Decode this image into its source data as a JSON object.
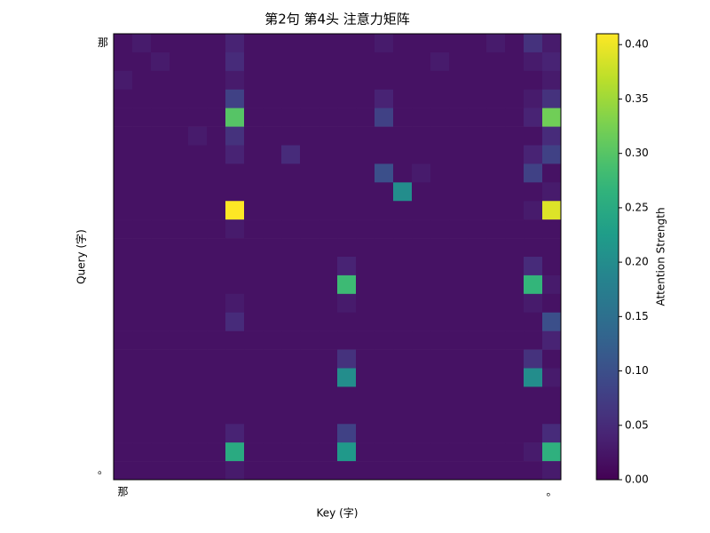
{
  "chart_data": {
    "type": "heatmap",
    "title": "第2句 第4头 注意力矩阵",
    "xlabel": "Key (字)",
    "ylabel": "Query (字)",
    "colorbar_label": "Attention Strength",
    "colormap": "viridis",
    "x_categories": [
      "那",
      null,
      null,
      null,
      null,
      null,
      null,
      null,
      null,
      null,
      null,
      null,
      null,
      null,
      null,
      null,
      null,
      null,
      null,
      null,
      null,
      null,
      null,
      "。"
    ],
    "y_categories": [
      "那",
      null,
      null,
      null,
      null,
      null,
      null,
      null,
      null,
      null,
      null,
      null,
      null,
      null,
      null,
      null,
      null,
      null,
      null,
      null,
      null,
      null,
      null,
      "。"
    ],
    "z": [
      [
        0.02,
        0.03,
        0.02,
        0.02,
        0.02,
        0.02,
        0.04,
        0.02,
        0.02,
        0.02,
        0.02,
        0.02,
        0.02,
        0.02,
        0.03,
        0.02,
        0.02,
        0.02,
        0.02,
        0.02,
        0.03,
        0.02,
        0.06,
        0.03
      ],
      [
        0.02,
        0.02,
        0.03,
        0.02,
        0.02,
        0.02,
        0.05,
        0.02,
        0.02,
        0.02,
        0.02,
        0.02,
        0.02,
        0.02,
        0.02,
        0.02,
        0.02,
        0.03,
        0.02,
        0.02,
        0.02,
        0.02,
        0.03,
        0.04
      ],
      [
        0.03,
        0.02,
        0.02,
        0.02,
        0.02,
        0.02,
        0.03,
        0.02,
        0.02,
        0.02,
        0.02,
        0.02,
        0.02,
        0.02,
        0.02,
        0.02,
        0.02,
        0.02,
        0.02,
        0.02,
        0.02,
        0.02,
        0.02,
        0.03
      ],
      [
        0.02,
        0.02,
        0.02,
        0.02,
        0.02,
        0.02,
        0.08,
        0.02,
        0.02,
        0.02,
        0.02,
        0.02,
        0.02,
        0.02,
        0.04,
        0.02,
        0.02,
        0.02,
        0.02,
        0.02,
        0.02,
        0.02,
        0.03,
        0.06
      ],
      [
        0.02,
        0.02,
        0.02,
        0.02,
        0.02,
        0.02,
        0.3,
        0.02,
        0.02,
        0.02,
        0.02,
        0.02,
        0.02,
        0.02,
        0.08,
        0.02,
        0.02,
        0.02,
        0.02,
        0.02,
        0.02,
        0.02,
        0.04,
        0.32
      ],
      [
        0.02,
        0.02,
        0.02,
        0.02,
        0.03,
        0.02,
        0.06,
        0.02,
        0.02,
        0.02,
        0.02,
        0.02,
        0.02,
        0.02,
        0.02,
        0.02,
        0.02,
        0.02,
        0.02,
        0.02,
        0.02,
        0.02,
        0.02,
        0.05
      ],
      [
        0.02,
        0.02,
        0.02,
        0.02,
        0.02,
        0.02,
        0.04,
        0.02,
        0.02,
        0.05,
        0.02,
        0.02,
        0.02,
        0.02,
        0.02,
        0.02,
        0.02,
        0.02,
        0.02,
        0.02,
        0.02,
        0.02,
        0.04,
        0.08
      ],
      [
        0.02,
        0.02,
        0.02,
        0.02,
        0.02,
        0.02,
        0.02,
        0.02,
        0.02,
        0.02,
        0.02,
        0.02,
        0.02,
        0.02,
        0.1,
        0.02,
        0.03,
        0.02,
        0.02,
        0.02,
        0.02,
        0.02,
        0.08,
        0.02
      ],
      [
        0.02,
        0.02,
        0.02,
        0.02,
        0.02,
        0.02,
        0.02,
        0.02,
        0.02,
        0.02,
        0.02,
        0.02,
        0.02,
        0.02,
        0.02,
        0.2,
        0.02,
        0.02,
        0.02,
        0.02,
        0.02,
        0.02,
        0.02,
        0.03
      ],
      [
        0.02,
        0.02,
        0.02,
        0.02,
        0.02,
        0.02,
        0.41,
        0.02,
        0.02,
        0.02,
        0.02,
        0.02,
        0.02,
        0.02,
        0.02,
        0.02,
        0.02,
        0.02,
        0.02,
        0.02,
        0.02,
        0.02,
        0.03,
        0.39
      ],
      [
        0.02,
        0.02,
        0.02,
        0.02,
        0.02,
        0.02,
        0.03,
        0.02,
        0.02,
        0.02,
        0.02,
        0.02,
        0.02,
        0.02,
        0.02,
        0.02,
        0.02,
        0.02,
        0.02,
        0.02,
        0.02,
        0.02,
        0.02,
        0.02
      ],
      [
        0.02,
        0.02,
        0.02,
        0.02,
        0.02,
        0.02,
        0.02,
        0.02,
        0.02,
        0.02,
        0.02,
        0.02,
        0.02,
        0.02,
        0.02,
        0.02,
        0.02,
        0.02,
        0.02,
        0.02,
        0.02,
        0.02,
        0.02,
        0.02
      ],
      [
        0.02,
        0.02,
        0.02,
        0.02,
        0.02,
        0.02,
        0.02,
        0.02,
        0.02,
        0.02,
        0.02,
        0.02,
        0.04,
        0.02,
        0.02,
        0.02,
        0.02,
        0.02,
        0.02,
        0.02,
        0.02,
        0.02,
        0.05,
        0.02
      ],
      [
        0.02,
        0.02,
        0.02,
        0.02,
        0.02,
        0.02,
        0.02,
        0.02,
        0.02,
        0.02,
        0.02,
        0.02,
        0.28,
        0.02,
        0.02,
        0.02,
        0.02,
        0.02,
        0.02,
        0.02,
        0.02,
        0.02,
        0.27,
        0.03
      ],
      [
        0.02,
        0.02,
        0.02,
        0.02,
        0.02,
        0.02,
        0.03,
        0.02,
        0.02,
        0.02,
        0.02,
        0.02,
        0.03,
        0.02,
        0.02,
        0.02,
        0.02,
        0.02,
        0.02,
        0.02,
        0.02,
        0.02,
        0.03,
        0.02
      ],
      [
        0.02,
        0.02,
        0.02,
        0.02,
        0.02,
        0.02,
        0.05,
        0.02,
        0.02,
        0.02,
        0.02,
        0.02,
        0.02,
        0.02,
        0.02,
        0.02,
        0.02,
        0.02,
        0.02,
        0.02,
        0.02,
        0.02,
        0.02,
        0.1
      ],
      [
        0.02,
        0.02,
        0.02,
        0.02,
        0.02,
        0.02,
        0.02,
        0.02,
        0.02,
        0.02,
        0.02,
        0.02,
        0.02,
        0.02,
        0.02,
        0.02,
        0.02,
        0.02,
        0.02,
        0.02,
        0.02,
        0.02,
        0.02,
        0.04
      ],
      [
        0.02,
        0.02,
        0.02,
        0.02,
        0.02,
        0.02,
        0.02,
        0.02,
        0.02,
        0.02,
        0.02,
        0.02,
        0.06,
        0.02,
        0.02,
        0.02,
        0.02,
        0.02,
        0.02,
        0.02,
        0.02,
        0.02,
        0.06,
        0.02
      ],
      [
        0.02,
        0.02,
        0.02,
        0.02,
        0.02,
        0.02,
        0.02,
        0.02,
        0.02,
        0.02,
        0.02,
        0.02,
        0.2,
        0.02,
        0.02,
        0.02,
        0.02,
        0.02,
        0.02,
        0.02,
        0.02,
        0.02,
        0.2,
        0.03
      ],
      [
        0.02,
        0.02,
        0.02,
        0.02,
        0.02,
        0.02,
        0.02,
        0.02,
        0.02,
        0.02,
        0.02,
        0.02,
        0.02,
        0.02,
        0.02,
        0.02,
        0.02,
        0.02,
        0.02,
        0.02,
        0.02,
        0.02,
        0.02,
        0.02
      ],
      [
        0.02,
        0.02,
        0.02,
        0.02,
        0.02,
        0.02,
        0.02,
        0.02,
        0.02,
        0.02,
        0.02,
        0.02,
        0.02,
        0.02,
        0.02,
        0.02,
        0.02,
        0.02,
        0.02,
        0.02,
        0.02,
        0.02,
        0.02,
        0.02
      ],
      [
        0.02,
        0.02,
        0.02,
        0.02,
        0.02,
        0.02,
        0.04,
        0.02,
        0.02,
        0.02,
        0.02,
        0.02,
        0.08,
        0.02,
        0.02,
        0.02,
        0.02,
        0.02,
        0.02,
        0.02,
        0.02,
        0.02,
        0.02,
        0.05
      ],
      [
        0.02,
        0.02,
        0.02,
        0.02,
        0.02,
        0.02,
        0.25,
        0.02,
        0.02,
        0.02,
        0.02,
        0.02,
        0.22,
        0.02,
        0.02,
        0.02,
        0.02,
        0.02,
        0.02,
        0.02,
        0.02,
        0.02,
        0.03,
        0.26
      ],
      [
        0.02,
        0.02,
        0.02,
        0.02,
        0.02,
        0.02,
        0.03,
        0.02,
        0.02,
        0.02,
        0.02,
        0.02,
        0.02,
        0.02,
        0.02,
        0.02,
        0.02,
        0.02,
        0.02,
        0.02,
        0.02,
        0.02,
        0.02,
        0.03
      ]
    ],
    "clim": [
      0,
      0.41
    ],
    "cticks": [
      {
        "value": 0,
        "label": "0.00"
      },
      0.05,
      {
        "value": 0.1,
        "label": "0.10"
      },
      0.15,
      {
        "value": 0.2,
        "label": "0.20"
      },
      0.25,
      {
        "value": 0.3,
        "label": "0.30"
      },
      0.35,
      {
        "value": 0.4,
        "label": "0.40"
      }
    ]
  }
}
